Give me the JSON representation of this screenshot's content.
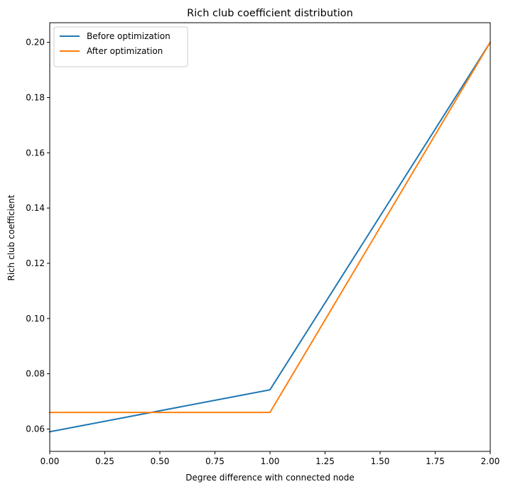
{
  "chart_data": {
    "type": "line",
    "title": "Rich club coefficient distribution",
    "xlabel": "Degree difference with connected node",
    "ylabel": "Rich club coefficient",
    "xlim": [
      0.0,
      2.0
    ],
    "ylim": [
      0.0519,
      0.2071
    ],
    "x_ticks": [
      0.0,
      0.25,
      0.5,
      0.75,
      1.0,
      1.25,
      1.5,
      1.75,
      2.0
    ],
    "x_tick_labels": [
      "0.00",
      "0.25",
      "0.50",
      "0.75",
      "1.00",
      "1.25",
      "1.50",
      "1.75",
      "2.00"
    ],
    "y_ticks": [
      0.06,
      0.08,
      0.1,
      0.12,
      0.14,
      0.16,
      0.18,
      0.2
    ],
    "y_tick_labels": [
      "0.06",
      "0.08",
      "0.10",
      "0.12",
      "0.14",
      "0.16",
      "0.18",
      "0.20"
    ],
    "grid": false,
    "legend_position": "upper-left",
    "series": [
      {
        "name": "Before optimization",
        "color": "#1f77b4",
        "x": [
          0,
          1,
          2
        ],
        "y": [
          0.059,
          0.0742,
          0.2
        ]
      },
      {
        "name": "After optimization",
        "color": "#ff7f0e",
        "x": [
          0,
          1,
          2
        ],
        "y": [
          0.066,
          0.066,
          0.2
        ]
      }
    ]
  }
}
